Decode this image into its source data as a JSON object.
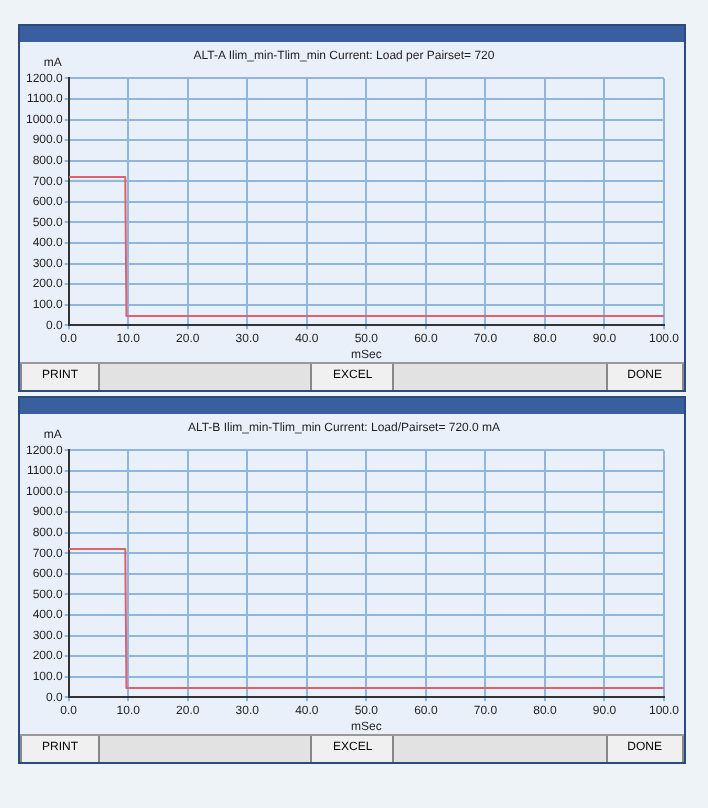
{
  "chart_data": [
    {
      "type": "line",
      "title": "ALT-A Ilim_min-Tlim_min Current: Load per Pairset= 720",
      "xlabel": "mSec",
      "ylabel": "mA",
      "marker": "none",
      "grid": true,
      "x": [
        0,
        9.5,
        9.7,
        100
      ],
      "series": [
        {
          "color": "#e0606e",
          "values": [
            720,
            720,
            45,
            45
          ]
        }
      ],
      "xlim": [
        0,
        100
      ],
      "ylim": [
        0,
        1200
      ],
      "xticks": [
        {
          "value": 0,
          "label": "0.0"
        },
        {
          "value": 10,
          "label": "10.0"
        },
        {
          "value": 20,
          "label": "20.0"
        },
        {
          "value": 30,
          "label": "30.0"
        },
        {
          "value": 40,
          "label": "40.0"
        },
        {
          "value": 50,
          "label": "50.0"
        },
        {
          "value": 60,
          "label": "60.0"
        },
        {
          "value": 70,
          "label": "70.0"
        },
        {
          "value": 80,
          "label": "80.0"
        },
        {
          "value": 90,
          "label": "90.0"
        },
        {
          "value": 100,
          "label": "100.0"
        }
      ],
      "yticks": [
        {
          "value": 0,
          "label": "0.0"
        },
        {
          "value": 100,
          "label": "100.0"
        },
        {
          "value": 200,
          "label": "200.0"
        },
        {
          "value": 300,
          "label": "300.0"
        },
        {
          "value": 400,
          "label": "400.0"
        },
        {
          "value": 500,
          "label": "500.0"
        },
        {
          "value": 600,
          "label": "600.0"
        },
        {
          "value": 700,
          "label": "700.0"
        },
        {
          "value": 800,
          "label": "800.0"
        },
        {
          "value": 900,
          "label": "900.0"
        },
        {
          "value": 1000,
          "label": "1000.0"
        },
        {
          "value": 1100,
          "label": "1100.0"
        },
        {
          "value": 1200,
          "label": "1200.0"
        }
      ],
      "annotations": [
        "PRINT",
        "EXCEL",
        "DONE"
      ]
    },
    {
      "type": "line",
      "title": "ALT-B Ilim_min-Tlim_min Current: Load/Pairset= 720.0 mA",
      "xlabel": "mSec",
      "ylabel": "mA",
      "marker": "none",
      "grid": true,
      "x": [
        0,
        9.5,
        9.7,
        100
      ],
      "series": [
        {
          "color": "#e0606e",
          "values": [
            720,
            720,
            45,
            45
          ]
        }
      ],
      "xlim": [
        0,
        100
      ],
      "ylim": [
        0,
        1200
      ],
      "xticks": [
        {
          "value": 0,
          "label": "0.0"
        },
        {
          "value": 10,
          "label": "10.0"
        },
        {
          "value": 20,
          "label": "20.0"
        },
        {
          "value": 30,
          "label": "30.0"
        },
        {
          "value": 40,
          "label": "40.0"
        },
        {
          "value": 50,
          "label": "50.0"
        },
        {
          "value": 60,
          "label": "60.0"
        },
        {
          "value": 70,
          "label": "70.0"
        },
        {
          "value": 80,
          "label": "80.0"
        },
        {
          "value": 90,
          "label": "90.0"
        },
        {
          "value": 100,
          "label": "100.0"
        }
      ],
      "yticks": [
        {
          "value": 0,
          "label": "0.0"
        },
        {
          "value": 100,
          "label": "100.0"
        },
        {
          "value": 200,
          "label": "200.0"
        },
        {
          "value": 300,
          "label": "300.0"
        },
        {
          "value": 400,
          "label": "400.0"
        },
        {
          "value": 500,
          "label": "500.0"
        },
        {
          "value": 600,
          "label": "600.0"
        },
        {
          "value": 700,
          "label": "700.0"
        },
        {
          "value": 800,
          "label": "800.0"
        },
        {
          "value": 900,
          "label": "900.0"
        },
        {
          "value": 1000,
          "label": "1000.0"
        },
        {
          "value": 1100,
          "label": "1100.0"
        },
        {
          "value": 1200,
          "label": "1200.0"
        }
      ],
      "annotations": [
        "PRINT",
        "EXCEL",
        "DONE"
      ]
    }
  ]
}
